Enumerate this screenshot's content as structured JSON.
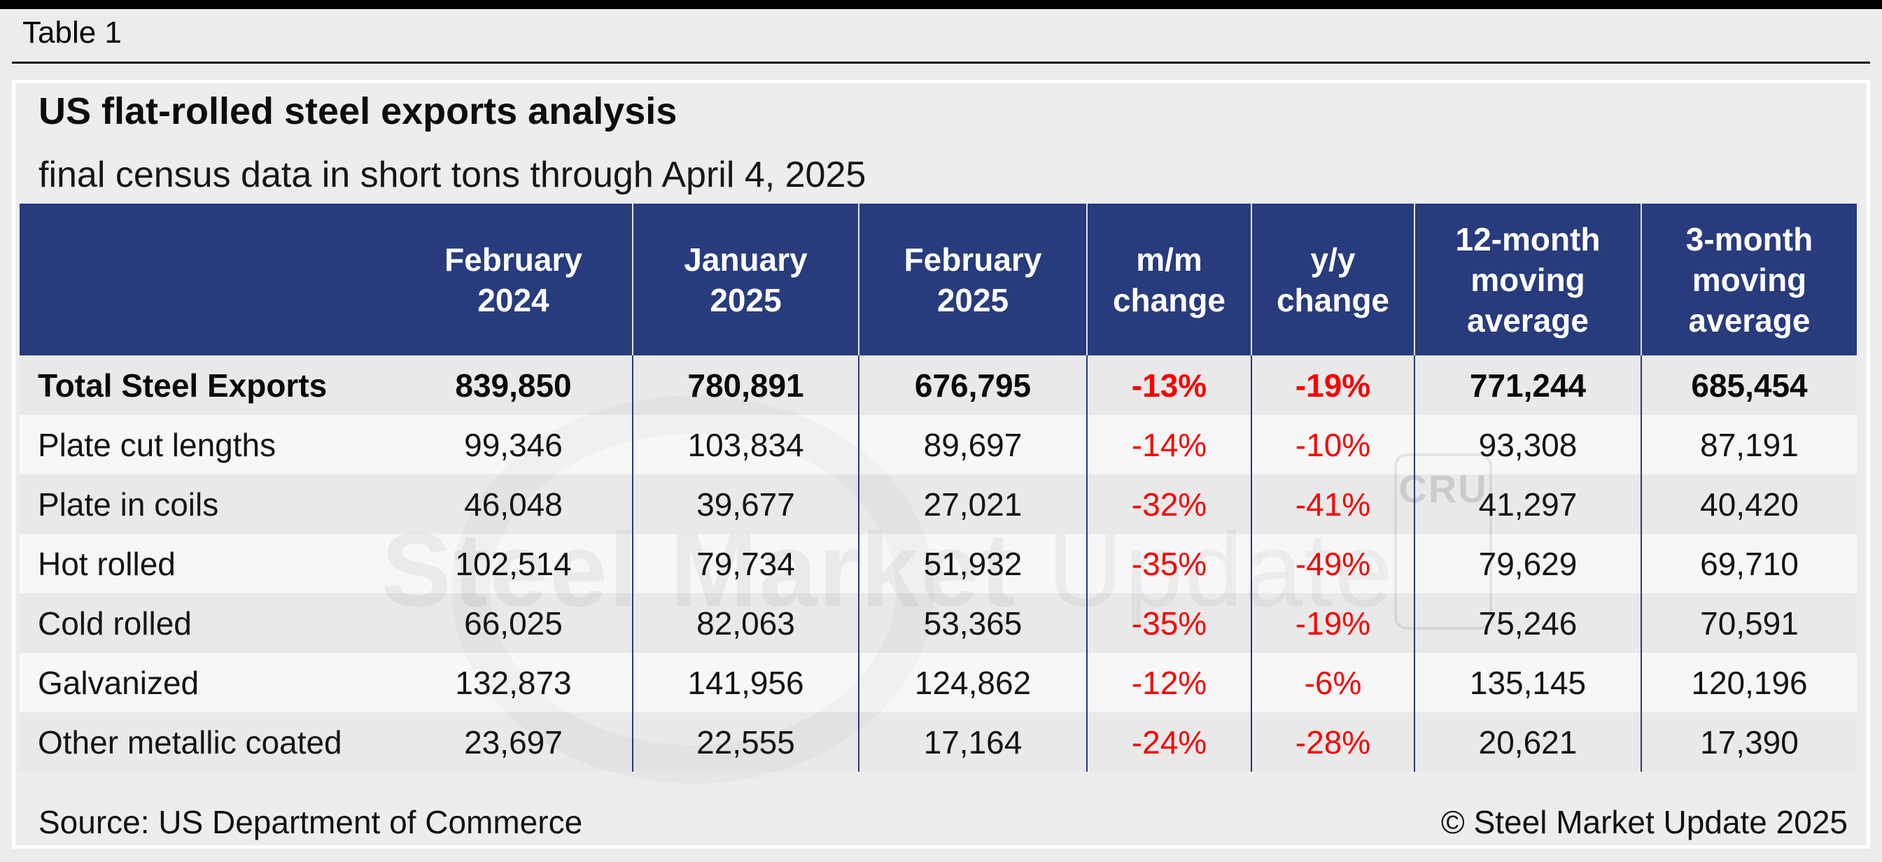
{
  "page": {
    "tag": "Table 1"
  },
  "header": {
    "title": "US flat-rolled steel exports analysis",
    "subtitle": "final census data in short tons through April 4, 2025"
  },
  "chart_data": {
    "type": "table",
    "title": "US flat-rolled steel exports analysis",
    "subtitle": "final census data in short tons through April 4, 2025",
    "columns": [
      "",
      "February\n2024",
      "January\n2025",
      "February\n2025",
      "m/m\nchange",
      "y/y\nchange",
      "12-month\nmoving\naverage",
      "3-month\nmoving\naverage"
    ],
    "rows": [
      {
        "label": "Total Steel Exports",
        "feb2024": "839,850",
        "jan2025": "780,891",
        "feb2025": "676,795",
        "mm": "-13%",
        "yy": "-19%",
        "avg12": "771,244",
        "avg3": "685,454"
      },
      {
        "label": "Plate cut lengths",
        "feb2024": "99,346",
        "jan2025": "103,834",
        "feb2025": "89,697",
        "mm": "-14%",
        "yy": "-10%",
        "avg12": "93,308",
        "avg3": "87,191"
      },
      {
        "label": "Plate in coils",
        "feb2024": "46,048",
        "jan2025": "39,677",
        "feb2025": "27,021",
        "mm": "-32%",
        "yy": "-41%",
        "avg12": "41,297",
        "avg3": "40,420"
      },
      {
        "label": "Hot rolled",
        "feb2024": "102,514",
        "jan2025": "79,734",
        "feb2025": "51,932",
        "mm": "-35%",
        "yy": "-49%",
        "avg12": "79,629",
        "avg3": "69,710"
      },
      {
        "label": "Cold rolled",
        "feb2024": "66,025",
        "jan2025": "82,063",
        "feb2025": "53,365",
        "mm": "-35%",
        "yy": "-19%",
        "avg12": "75,246",
        "avg3": "70,591"
      },
      {
        "label": "Galvanized",
        "feb2024": "132,873",
        "jan2025": "141,956",
        "feb2025": "124,862",
        "mm": "-12%",
        "yy": "-6%",
        "avg12": "135,145",
        "avg3": "120,196"
      },
      {
        "label": "Other metallic coated",
        "feb2024": "23,697",
        "jan2025": "22,555",
        "feb2025": "17,164",
        "mm": "-24%",
        "yy": "-28%",
        "avg12": "20,621",
        "avg3": "17,390"
      }
    ]
  },
  "footer": {
    "source": "Source: US Department of Commerce",
    "copyright": "© Steel Market Update 2025"
  },
  "watermark": {
    "text_bold": "Steel Market",
    "text_light": " Update",
    "cru": "CRU"
  },
  "colors": {
    "top_bar": "#000000",
    "header_bg": "#283b7d",
    "negative": "#fa0000",
    "page_bg": "#ececec",
    "panel_bg": "#ededed",
    "stripe_dark": "#e9e9e9",
    "stripe_light": "#f7f7f7",
    "header_text": "#ffffff"
  }
}
